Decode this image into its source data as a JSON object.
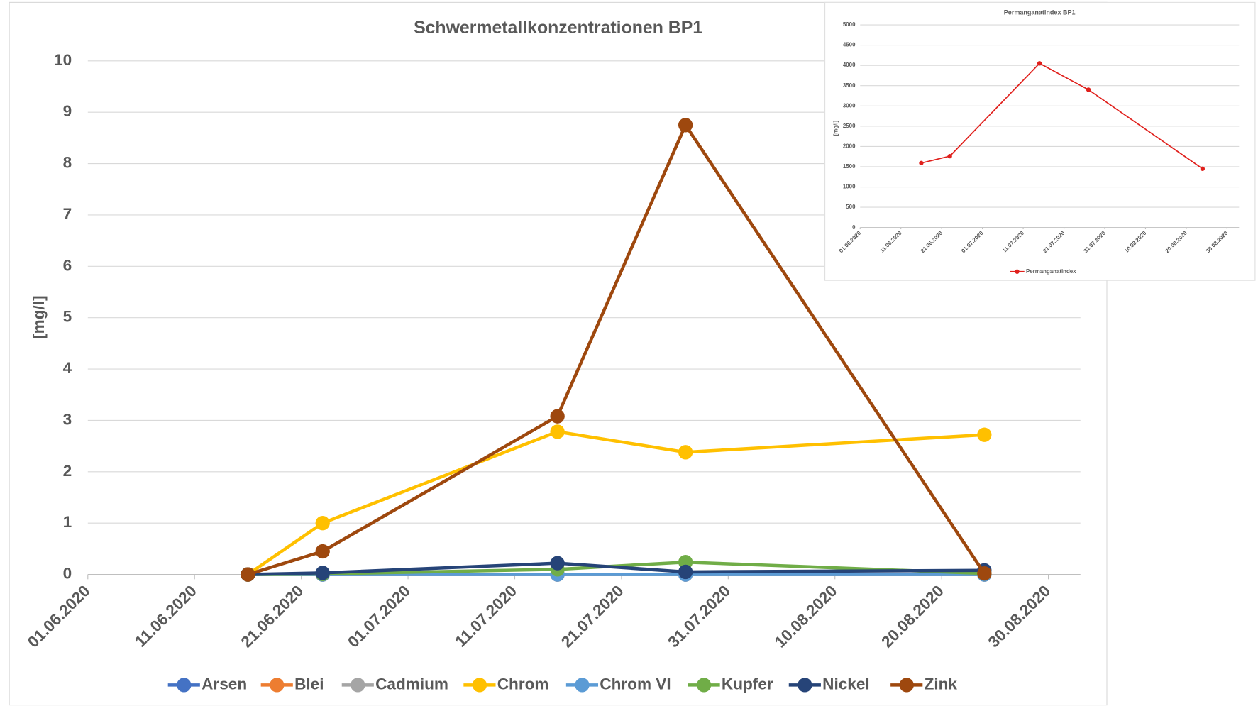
{
  "chart_data": [
    {
      "type": "line",
      "title": "Schwermetallkonzentrationen BP1",
      "y_label": "[mg/l]",
      "x": [
        "16.06.2020",
        "23.06.2020",
        "15.07.2020",
        "27.07.2020",
        "24.08.2020"
      ],
      "xlim": [
        "01.06.2020",
        "30.08.2020"
      ],
      "xticks": [
        "01.06.2020",
        "11.06.2020",
        "21.06.2020",
        "01.07.2020",
        "11.07.2020",
        "21.07.2020",
        "31.07.2020",
        "10.08.2020",
        "20.08.2020",
        "30.08.2020"
      ],
      "ylim": [
        0,
        10
      ],
      "yticks": [
        0,
        1,
        2,
        3,
        4,
        5,
        6,
        7,
        8,
        9,
        10
      ],
      "grid": true,
      "legend": "bottom",
      "series": [
        {
          "name": "Arsen",
          "color": "#4472c4",
          "values": [
            0,
            0,
            0,
            0,
            0
          ]
        },
        {
          "name": "Blei",
          "color": "#ed7d31",
          "values": [
            0,
            0,
            0,
            0,
            0
          ]
        },
        {
          "name": "Cadmium",
          "color": "#a5a5a5",
          "values": [
            0,
            0,
            0,
            0,
            0
          ]
        },
        {
          "name": "Chrom",
          "color": "#ffc000",
          "values": [
            0,
            1.0,
            2.78,
            2.38,
            2.72
          ]
        },
        {
          "name": "Chrom VI",
          "color": "#5b9bd5",
          "values": [
            0,
            0,
            0,
            0,
            0
          ]
        },
        {
          "name": "Kupfer",
          "color": "#70ad47",
          "values": [
            0,
            0.01,
            0.1,
            0.24,
            0.02
          ]
        },
        {
          "name": "Nickel",
          "color": "#264478",
          "values": [
            0,
            0.03,
            0.22,
            0.05,
            0.08
          ]
        },
        {
          "name": "Zink",
          "color": "#9e480e",
          "values": [
            0,
            0.45,
            3.08,
            8.75,
            0.02
          ]
        }
      ]
    },
    {
      "type": "line",
      "title": "Permanganatindex BP1",
      "y_label": "[mg/l]",
      "x": [
        "16.06.2020",
        "23.06.2020",
        "15.07.2020",
        "27.07.2020",
        "24.08.2020"
      ],
      "xlim": [
        "01.06.2020",
        "30.08.2020"
      ],
      "xticks": [
        "01.06.2020",
        "11.06.2020",
        "21.06.2020",
        "01.07.2020",
        "11.07.2020",
        "21.07.2020",
        "31.07.2020",
        "10.08.2020",
        "20.08.2020",
        "30.08.2020"
      ],
      "ylim": [
        0,
        5000
      ],
      "yticks": [
        0,
        500,
        1000,
        1500,
        2000,
        2500,
        3000,
        3500,
        4000,
        4500,
        5000
      ],
      "grid": true,
      "legend": "bottom",
      "series": [
        {
          "name": "Permanganatindex",
          "color": "#e0201c",
          "values": [
            1590,
            1760,
            4050,
            3400,
            1450
          ]
        }
      ]
    }
  ]
}
